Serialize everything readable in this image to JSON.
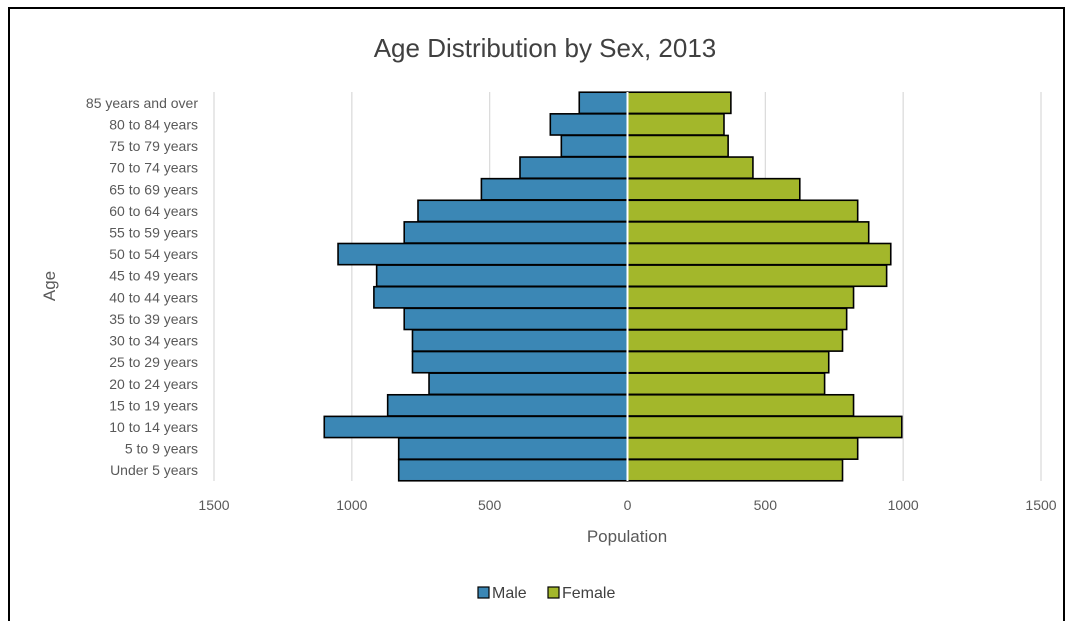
{
  "chart_data": {
    "type": "bar",
    "orientation": "horizontal",
    "layout": "population-pyramid",
    "title": "Age Distribution by Sex, 2013",
    "xlabel": "Population",
    "ylabel": "Age",
    "xlim": [
      -1500,
      1500
    ],
    "x_ticks": [
      -1500,
      -1000,
      -500,
      0,
      500,
      1000,
      1500
    ],
    "x_tick_labels": [
      "1500",
      "1000",
      "500",
      "0",
      "500",
      "1000",
      "1500"
    ],
    "grid": "vertical",
    "legend_position": "bottom",
    "categories": [
      "Under 5 years",
      "5 to 9 years",
      "10 to 14 years",
      "15 to 19 years",
      "20 to 24 years",
      "25 to 29 years",
      "30 to 34 years",
      "35 to 39 years",
      "40 to 44 years",
      "45 to 49 years",
      "50 to 54 years",
      "55 to 59 years",
      "60 to 64 years",
      "65 to 69 years",
      "70 to 74 years",
      "75 to 79 years",
      "80 to 84 years",
      "85 years and over"
    ],
    "series": [
      {
        "name": "Male",
        "color": "#3b87b5",
        "values": [
          830,
          830,
          1100,
          870,
          720,
          780,
          780,
          810,
          920,
          910,
          1050,
          810,
          760,
          530,
          390,
          240,
          280,
          175
        ]
      },
      {
        "name": "Female",
        "color": "#a3b72b",
        "values": [
          780,
          835,
          995,
          820,
          715,
          730,
          780,
          795,
          820,
          940,
          955,
          875,
          835,
          625,
          455,
          365,
          350,
          375
        ]
      }
    ]
  }
}
